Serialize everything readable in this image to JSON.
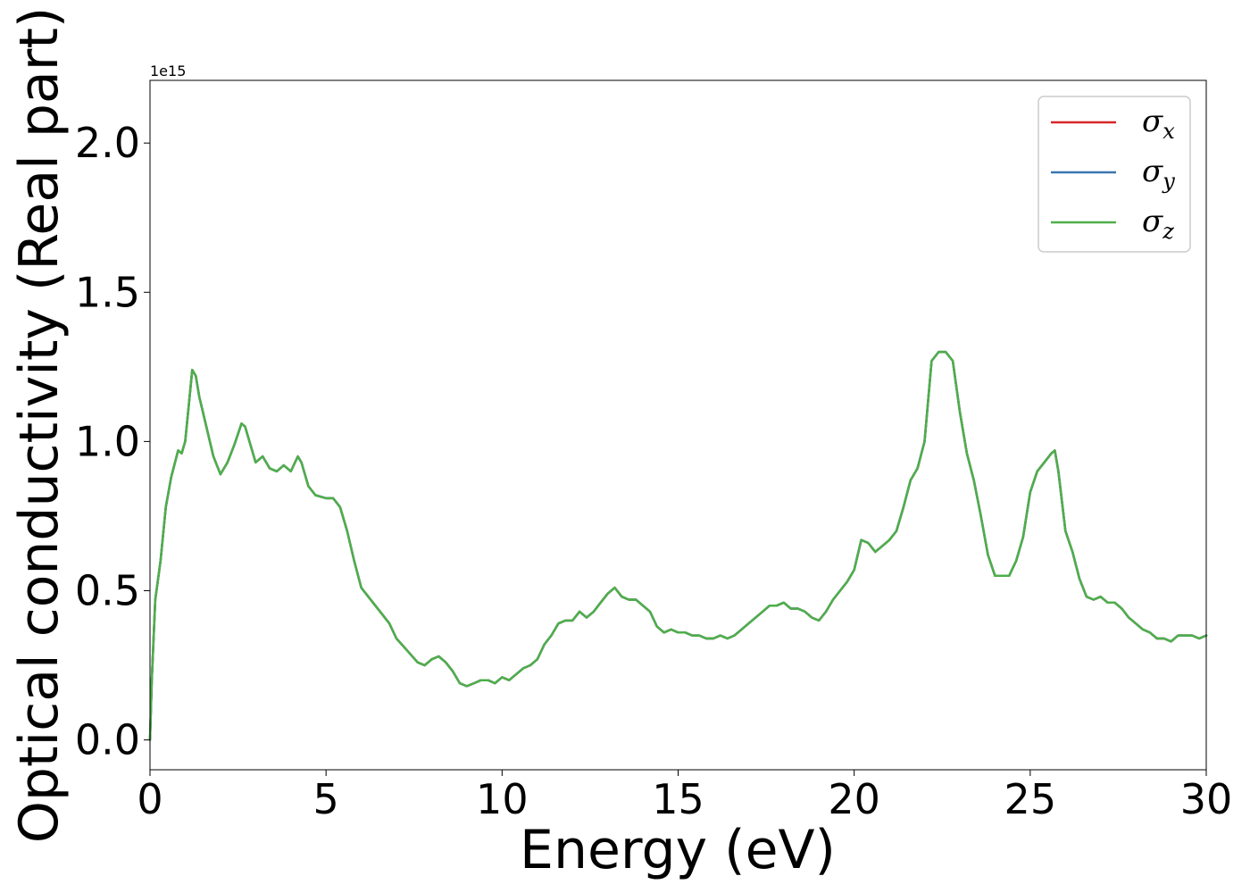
{
  "chart_data": {
    "type": "line",
    "title": "",
    "xlabel": "Energy (eV)",
    "ylabel": "Optical conductivity (Real part)",
    "y_offset_label": "1e15",
    "xlim": [
      0,
      30
    ],
    "ylim": [
      -0.1,
      2.21
    ],
    "xticks": [
      0,
      5,
      10,
      15,
      20,
      25,
      30
    ],
    "xtick_labels": [
      "0",
      "5",
      "10",
      "15",
      "20",
      "25",
      "30"
    ],
    "yticks": [
      0.0,
      0.5,
      1.0,
      1.5,
      2.0
    ],
    "ytick_labels": [
      "0.0",
      "0.5",
      "1.0",
      "1.5",
      "2.0"
    ],
    "grid": false,
    "legend_position": "top-right",
    "legend": [
      {
        "symbol": "σ",
        "sub": "x",
        "color": "#d62728"
      },
      {
        "symbol": "σ",
        "sub": "y",
        "color": "#3b75af"
      },
      {
        "symbol": "σ",
        "sub": "z",
        "color": "#4daf4a"
      }
    ],
    "x": [
      0,
      0.05,
      0.15,
      0.3,
      0.45,
      0.6,
      0.8,
      0.9,
      1.0,
      1.1,
      1.2,
      1.3,
      1.4,
      1.6,
      1.8,
      2.0,
      2.2,
      2.4,
      2.6,
      2.7,
      2.8,
      3.0,
      3.2,
      3.4,
      3.6,
      3.8,
      4.0,
      4.2,
      4.3,
      4.5,
      4.7,
      5.0,
      5.2,
      5.4,
      5.6,
      5.8,
      6.0,
      6.2,
      6.4,
      6.6,
      6.8,
      7.0,
      7.3,
      7.6,
      7.8,
      8.0,
      8.2,
      8.4,
      8.6,
      8.8,
      9.0,
      9.2,
      9.4,
      9.6,
      9.8,
      10.0,
      10.2,
      10.4,
      10.6,
      10.8,
      11.0,
      11.2,
      11.4,
      11.6,
      11.8,
      12.0,
      12.2,
      12.4,
      12.6,
      12.8,
      13.0,
      13.2,
      13.4,
      13.6,
      13.8,
      14.0,
      14.2,
      14.4,
      14.6,
      14.8,
      15.0,
      15.2,
      15.4,
      15.6,
      15.8,
      16.0,
      16.2,
      16.4,
      16.6,
      16.8,
      17.0,
      17.2,
      17.4,
      17.6,
      17.8,
      18.0,
      18.2,
      18.4,
      18.6,
      18.8,
      19.0,
      19.2,
      19.4,
      19.6,
      19.8,
      20.0,
      20.2,
      20.4,
      20.6,
      20.8,
      21.0,
      21.2,
      21.4,
      21.6,
      21.8,
      22.0,
      22.2,
      22.4,
      22.6,
      22.8,
      23.0,
      23.2,
      23.4,
      23.6,
      23.8,
      24.0,
      24.2,
      24.4,
      24.6,
      24.8,
      25.0,
      25.2,
      25.4,
      25.6,
      25.7,
      25.8,
      26.0,
      26.2,
      26.4,
      26.6,
      26.8,
      27.0,
      27.2,
      27.4,
      27.6,
      27.8,
      28.0,
      28.2,
      28.4,
      28.6,
      28.8,
      29.0,
      29.2,
      29.4,
      29.6,
      29.8,
      30.0
    ],
    "series": [
      {
        "label": "σx",
        "color": "#d62728",
        "values": [
          0.0,
          0.2,
          0.47,
          0.6,
          0.78,
          0.88,
          0.97,
          0.96,
          1.0,
          1.12,
          1.24,
          1.22,
          1.15,
          1.05,
          0.95,
          0.89,
          0.93,
          0.99,
          1.06,
          1.05,
          1.01,
          0.93,
          0.95,
          0.91,
          0.9,
          0.92,
          0.9,
          0.95,
          0.93,
          0.85,
          0.82,
          0.81,
          0.81,
          0.78,
          0.7,
          0.6,
          0.51,
          0.48,
          0.45,
          0.42,
          0.39,
          0.34,
          0.3,
          0.26,
          0.25,
          0.27,
          0.28,
          0.26,
          0.23,
          0.19,
          0.18,
          0.19,
          0.2,
          0.2,
          0.19,
          0.21,
          0.2,
          0.22,
          0.24,
          0.25,
          0.27,
          0.32,
          0.35,
          0.39,
          0.4,
          0.4,
          0.43,
          0.41,
          0.43,
          0.46,
          0.49,
          0.51,
          0.48,
          0.47,
          0.47,
          0.45,
          0.43,
          0.38,
          0.36,
          0.37,
          0.36,
          0.36,
          0.35,
          0.35,
          0.34,
          0.34,
          0.35,
          0.34,
          0.35,
          0.37,
          0.39,
          0.41,
          0.43,
          0.45,
          0.45,
          0.46,
          0.44,
          0.44,
          0.43,
          0.41,
          0.4,
          0.43,
          0.47,
          0.5,
          0.53,
          0.57,
          0.67,
          0.66,
          0.63,
          0.65,
          0.67,
          0.7,
          0.78,
          0.87,
          0.91,
          1.0,
          1.27,
          1.3,
          1.3,
          1.27,
          1.1,
          0.96,
          0.87,
          0.75,
          0.62,
          0.55,
          0.55,
          0.55,
          0.6,
          0.68,
          0.83,
          0.9,
          0.93,
          0.96,
          0.97,
          0.9,
          0.7,
          0.63,
          0.54,
          0.48,
          0.47,
          0.48,
          0.46,
          0.46,
          0.44,
          0.41,
          0.39,
          0.37,
          0.36,
          0.34,
          0.34,
          0.33,
          0.35,
          0.35,
          0.35,
          0.34,
          0.35
        ]
      },
      {
        "label": "σy",
        "color": "#3b75af",
        "values": [
          0.0,
          0.2,
          0.47,
          0.6,
          0.78,
          0.88,
          0.97,
          0.96,
          1.0,
          1.12,
          1.24,
          1.22,
          1.15,
          1.05,
          0.95,
          0.89,
          0.93,
          0.99,
          1.06,
          1.05,
          1.01,
          0.93,
          0.95,
          0.91,
          0.9,
          0.92,
          0.9,
          0.95,
          0.93,
          0.85,
          0.82,
          0.81,
          0.81,
          0.78,
          0.7,
          0.6,
          0.51,
          0.48,
          0.45,
          0.42,
          0.39,
          0.34,
          0.3,
          0.26,
          0.25,
          0.27,
          0.28,
          0.26,
          0.23,
          0.19,
          0.18,
          0.19,
          0.2,
          0.2,
          0.19,
          0.21,
          0.2,
          0.22,
          0.24,
          0.25,
          0.27,
          0.32,
          0.35,
          0.39,
          0.4,
          0.4,
          0.43,
          0.41,
          0.43,
          0.46,
          0.49,
          0.51,
          0.48,
          0.47,
          0.47,
          0.45,
          0.43,
          0.38,
          0.36,
          0.37,
          0.36,
          0.36,
          0.35,
          0.35,
          0.34,
          0.34,
          0.35,
          0.34,
          0.35,
          0.37,
          0.39,
          0.41,
          0.43,
          0.45,
          0.45,
          0.46,
          0.44,
          0.44,
          0.43,
          0.41,
          0.4,
          0.43,
          0.47,
          0.5,
          0.53,
          0.57,
          0.67,
          0.66,
          0.63,
          0.65,
          0.67,
          0.7,
          0.78,
          0.87,
          0.91,
          1.0,
          1.27,
          1.3,
          1.3,
          1.27,
          1.1,
          0.96,
          0.87,
          0.75,
          0.62,
          0.55,
          0.55,
          0.55,
          0.6,
          0.68,
          0.83,
          0.9,
          0.93,
          0.96,
          0.97,
          0.9,
          0.7,
          0.63,
          0.54,
          0.48,
          0.47,
          0.48,
          0.46,
          0.46,
          0.44,
          0.41,
          0.39,
          0.37,
          0.36,
          0.34,
          0.34,
          0.33,
          0.35,
          0.35,
          0.35,
          0.34,
          0.35
        ]
      },
      {
        "label": "σz",
        "color": "#4daf4a",
        "values": [
          0.0,
          0.2,
          0.47,
          0.6,
          0.78,
          0.88,
          0.97,
          0.96,
          1.0,
          1.12,
          1.24,
          1.22,
          1.15,
          1.05,
          0.95,
          0.89,
          0.93,
          0.99,
          1.06,
          1.05,
          1.01,
          0.93,
          0.95,
          0.91,
          0.9,
          0.92,
          0.9,
          0.95,
          0.93,
          0.85,
          0.82,
          0.81,
          0.81,
          0.78,
          0.7,
          0.6,
          0.51,
          0.48,
          0.45,
          0.42,
          0.39,
          0.34,
          0.3,
          0.26,
          0.25,
          0.27,
          0.28,
          0.26,
          0.23,
          0.19,
          0.18,
          0.19,
          0.2,
          0.2,
          0.19,
          0.21,
          0.2,
          0.22,
          0.24,
          0.25,
          0.27,
          0.32,
          0.35,
          0.39,
          0.4,
          0.4,
          0.43,
          0.41,
          0.43,
          0.46,
          0.49,
          0.51,
          0.48,
          0.47,
          0.47,
          0.45,
          0.43,
          0.38,
          0.36,
          0.37,
          0.36,
          0.36,
          0.35,
          0.35,
          0.34,
          0.34,
          0.35,
          0.34,
          0.35,
          0.37,
          0.39,
          0.41,
          0.43,
          0.45,
          0.45,
          0.46,
          0.44,
          0.44,
          0.43,
          0.41,
          0.4,
          0.43,
          0.47,
          0.5,
          0.53,
          0.57,
          0.67,
          0.66,
          0.63,
          0.65,
          0.67,
          0.7,
          0.78,
          0.87,
          0.91,
          1.0,
          1.27,
          1.3,
          1.3,
          1.27,
          1.1,
          0.96,
          0.87,
          0.75,
          0.62,
          0.55,
          0.55,
          0.55,
          0.6,
          0.68,
          0.83,
          0.9,
          0.93,
          0.96,
          0.97,
          0.9,
          0.7,
          0.63,
          0.54,
          0.48,
          0.47,
          0.48,
          0.46,
          0.46,
          0.44,
          0.41,
          0.39,
          0.37,
          0.36,
          0.34,
          0.34,
          0.33,
          0.35,
          0.35,
          0.35,
          0.34,
          0.35
        ]
      }
    ]
  }
}
